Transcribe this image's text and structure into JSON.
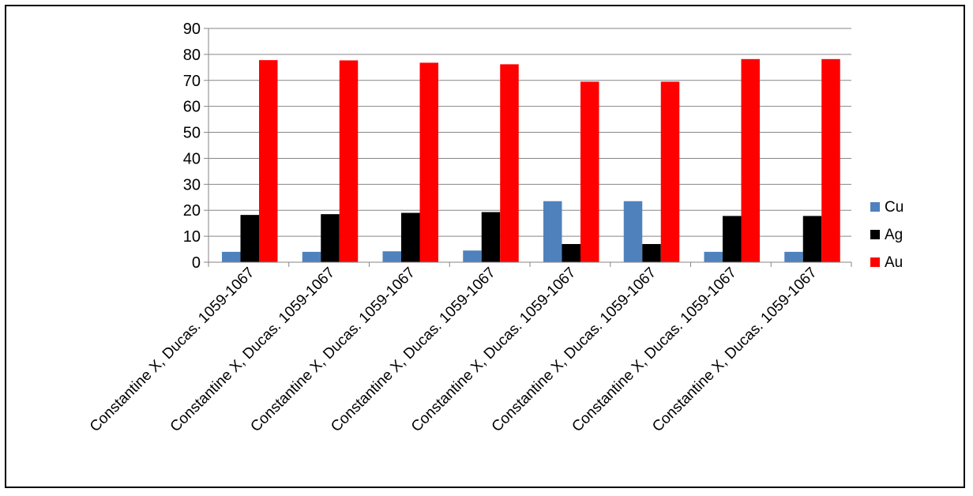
{
  "chart_data": {
    "type": "bar",
    "title": "",
    "xlabel": "",
    "ylabel": "",
    "ylim": [
      0,
      90
    ],
    "yticks": [
      0,
      10,
      20,
      30,
      40,
      50,
      60,
      70,
      80,
      90
    ],
    "grid": true,
    "legend_position": "right",
    "categories": [
      "Constantine X, Ducas. 1059-1067",
      "Constantine X, Ducas. 1059-1067",
      "Constantine X, Ducas. 1059-1067",
      "Constantine X, Ducas. 1059-1067",
      "Constantine X, Ducas. 1059-1067",
      "Constantine X, Ducas. 1059-1067",
      "Constantine X, Ducas. 1059-1067",
      "Constantine X, Ducas. 1059-1067"
    ],
    "series": [
      {
        "name": "Cu",
        "color": "#4f81bd",
        "values": [
          4.0,
          4.0,
          4.2,
          4.5,
          23.5,
          23.5,
          4.0,
          4.0
        ]
      },
      {
        "name": "Ag",
        "color": "#000000",
        "values": [
          18.2,
          18.5,
          19.0,
          19.3,
          7.0,
          7.0,
          17.8,
          17.8
        ]
      },
      {
        "name": "Au",
        "color": "#ff0000",
        "values": [
          77.8,
          77.7,
          76.8,
          76.2,
          69.5,
          69.5,
          78.2,
          78.2
        ]
      }
    ]
  }
}
